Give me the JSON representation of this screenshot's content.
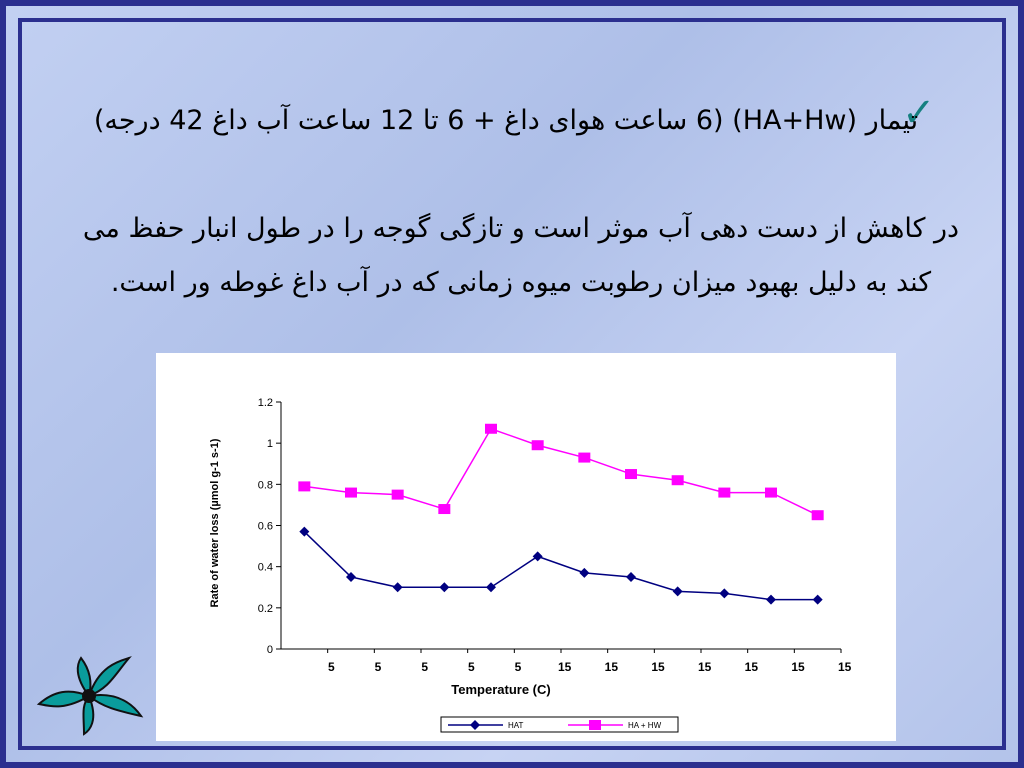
{
  "slide": {
    "bullet": "تیمار (HA+Hw) (6 ساعت هوای داغ + 6 تا 12 ساعت آب داغ 42 درجه)",
    "body": "در کاهش از دست دهی آب موثر است و تازگی گوجه را در طول انبار حفظ می کند به دلیل بهبود میزان رطوبت میوه زمانی که در آب داغ غوطه ور است."
  },
  "chart_data": {
    "type": "line",
    "x_label": "Temperature (C)",
    "y_label": "Rate of water loss (µmol g-1 s-1)",
    "categories": [
      "5",
      "5",
      "5",
      "5",
      "5",
      "15",
      "15",
      "15",
      "15",
      "15",
      "15",
      "15"
    ],
    "series": [
      {
        "name": "HAT",
        "color": "#000080",
        "marker": "diamond",
        "values": [
          0.57,
          0.35,
          0.3,
          0.3,
          0.3,
          0.45,
          0.37,
          0.35,
          0.28,
          0.27,
          0.24,
          0.24
        ]
      },
      {
        "name": "HA + HW",
        "color": "#ff00ff",
        "marker": "square",
        "values": [
          0.79,
          0.76,
          0.75,
          0.68,
          1.07,
          0.99,
          0.93,
          0.85,
          0.82,
          0.76,
          0.76,
          0.65
        ]
      }
    ],
    "ylim": [
      0,
      1.2
    ],
    "yticks": [
      0,
      0.2,
      0.4,
      0.6,
      0.8,
      1,
      1.2
    ],
    "legend": "bottom"
  }
}
